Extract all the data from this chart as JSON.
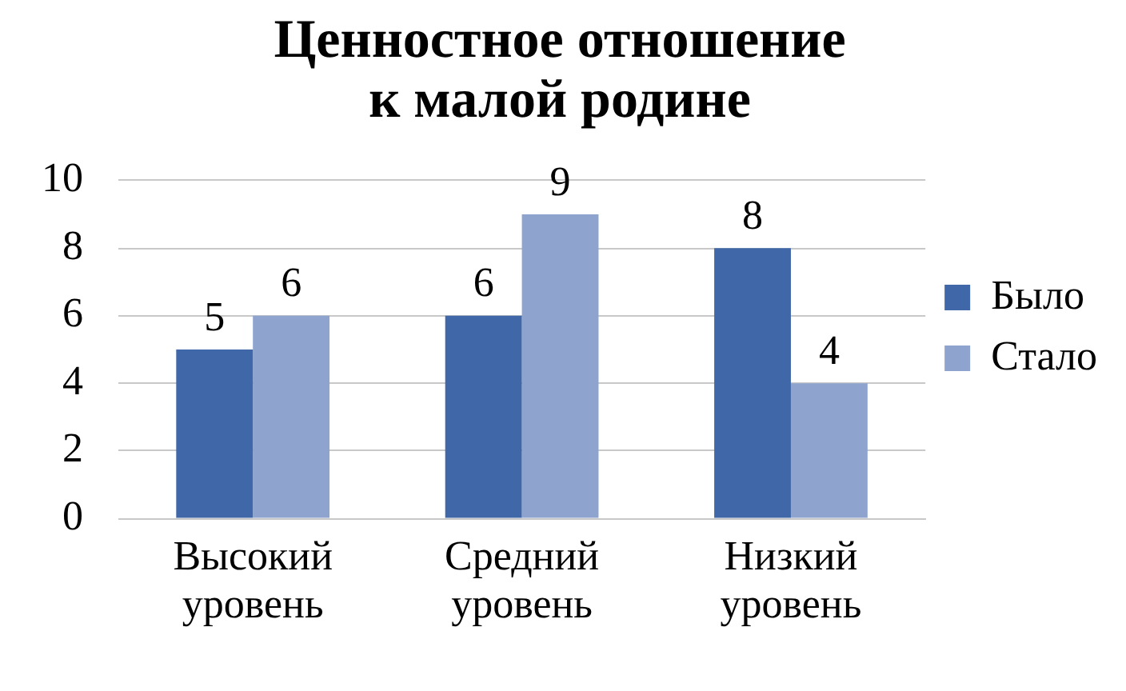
{
  "chart_data": {
    "type": "bar",
    "title": "Ценностное отношение к малой родине",
    "categories": [
      "Высокий уровень",
      "Средний уровень",
      "Низкий уровень"
    ],
    "series": [
      {
        "name": "Было",
        "color": "#4068a8",
        "values": [
          5,
          6,
          8
        ]
      },
      {
        "name": "Стало",
        "color": "#8ea4cf",
        "values": [
          6,
          9,
          4
        ]
      }
    ],
    "ylim": [
      0,
      10
    ],
    "yticks": [
      0,
      2,
      4,
      6,
      8,
      10
    ],
    "grid": "y",
    "legend": "right",
    "data_labels": true
  }
}
